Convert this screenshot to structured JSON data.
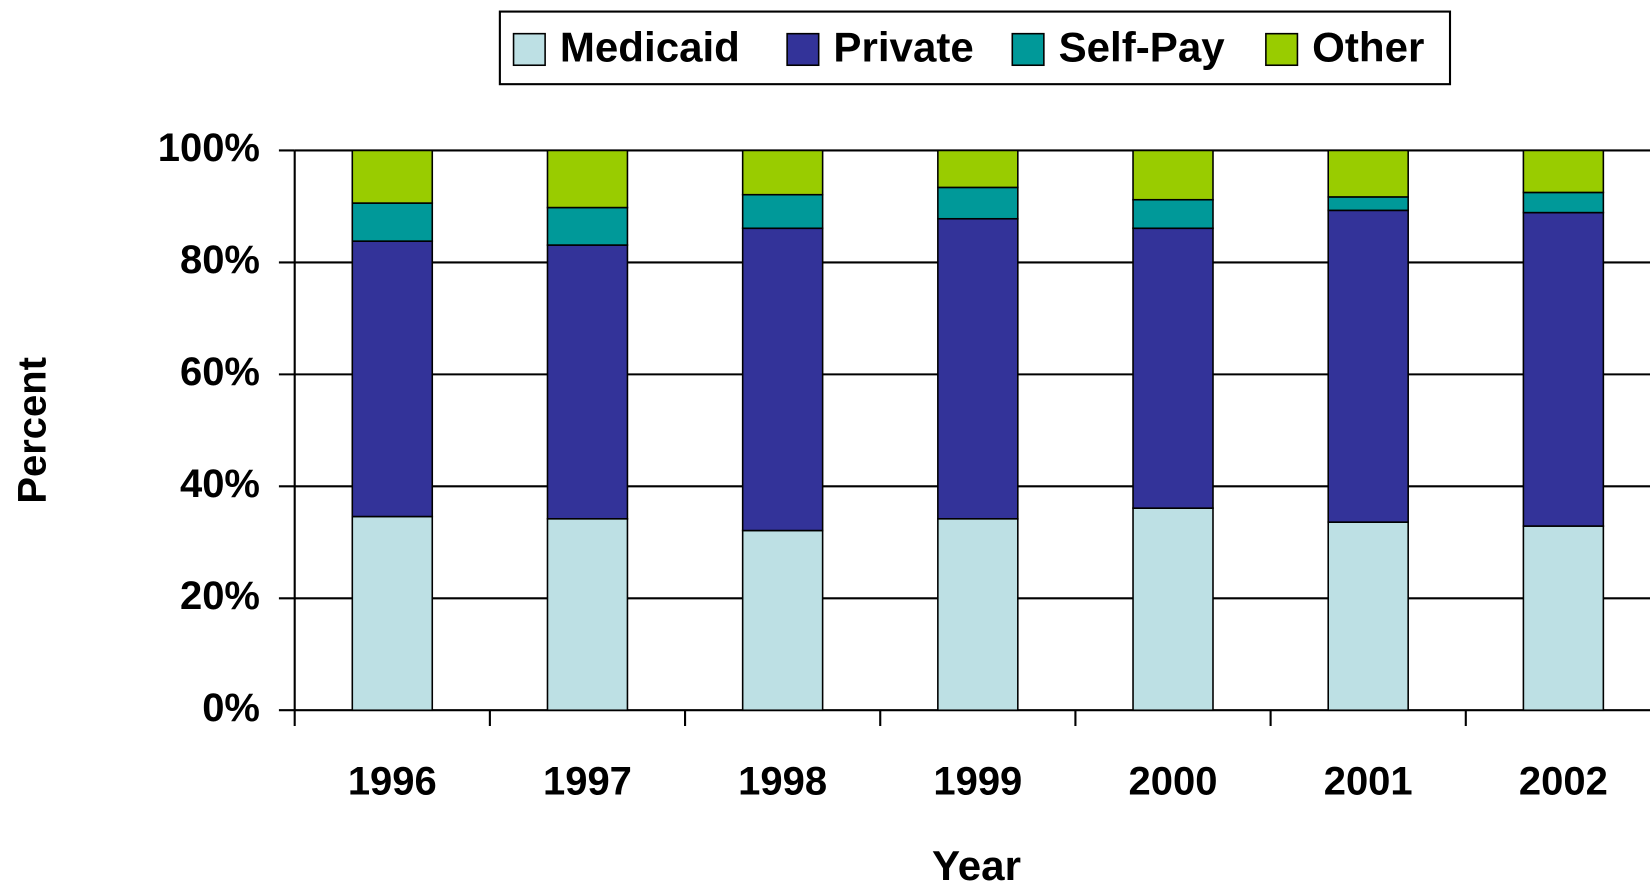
{
  "chart_data": {
    "type": "stacked_bar",
    "categories": [
      "1996",
      "1997",
      "1998",
      "1999",
      "2000",
      "2001",
      "2002"
    ],
    "series": [
      {
        "name": "Medicaid",
        "color": "#bde0e4",
        "values": [
          34.6,
          34.2,
          32.1,
          34.2,
          36.1,
          33.6,
          32.9
        ]
      },
      {
        "name": "Private",
        "color": "#333399",
        "values": [
          49.2,
          48.9,
          54.0,
          53.6,
          50.0,
          55.7,
          56.0
        ]
      },
      {
        "name": "Self-Pay",
        "color": "#009999",
        "values": [
          6.8,
          6.7,
          6.0,
          5.6,
          5.1,
          2.4,
          3.6
        ]
      },
      {
        "name": "Other",
        "color": "#99cc00",
        "values": [
          9.4,
          10.2,
          7.9,
          6.6,
          8.8,
          8.3,
          7.5
        ]
      }
    ],
    "ylim": [
      0,
      100
    ],
    "yticks": [
      {
        "value": 0,
        "label": "0%"
      },
      {
        "value": 20,
        "label": "20%"
      },
      {
        "value": 40,
        "label": "40%"
      },
      {
        "value": 60,
        "label": "60%"
      },
      {
        "value": 80,
        "label": "80%"
      },
      {
        "value": 100,
        "label": "100%"
      }
    ],
    "xlabel": "Year",
    "ylabel": "Percent",
    "grid": true,
    "legend": "top"
  }
}
